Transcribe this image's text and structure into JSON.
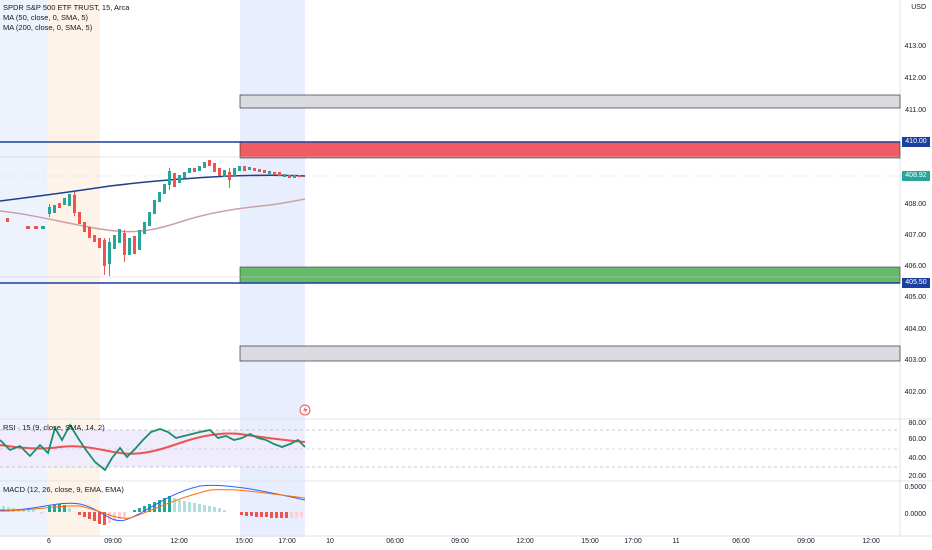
{
  "chart": {
    "title": "SPDR S&P 500 ETF TRUST, 15, Arca",
    "indicators": [
      "MA (50, close, 0, SMA, 5)",
      "MA (200, close, 0, SMA, 5)"
    ],
    "currency": "USD",
    "price_labels": [
      "413.00",
      "412.00",
      "411.00",
      "408.00",
      "407.00",
      "406.00",
      "405.00",
      "404.00",
      "403.00",
      "402.00"
    ],
    "highlight_tags": {
      "upper": "410.00",
      "current": "408.92",
      "lower": "405.50"
    },
    "time_labels": [
      "6",
      "09:00",
      "12:00",
      "15:00",
      "17:00",
      "10",
      "06:00",
      "09:00",
      "12:00",
      "15:00",
      "17:00",
      "11",
      "06:00",
      "09:00",
      "12:00"
    ]
  },
  "rsi": {
    "label": "RSI · 15 (9, close, SMA, 14, 2)",
    "levels": [
      "80.00",
      "60.00",
      "40.00",
      "20.00"
    ]
  },
  "macd": {
    "label": "MACD (12, 26, close, 9, EMA, EMA)",
    "levels": [
      "0.5000",
      "0.0000"
    ]
  },
  "colors": {
    "up": "#26a69a",
    "down": "#ef5350",
    "ma50": "#1e3f8f",
    "ma200": "#c9a3a3",
    "resistance": "#f05c64",
    "support": "#66bb6a",
    "session_pre": "#eaf0fd",
    "session_post": "#fdf0e1"
  }
}
